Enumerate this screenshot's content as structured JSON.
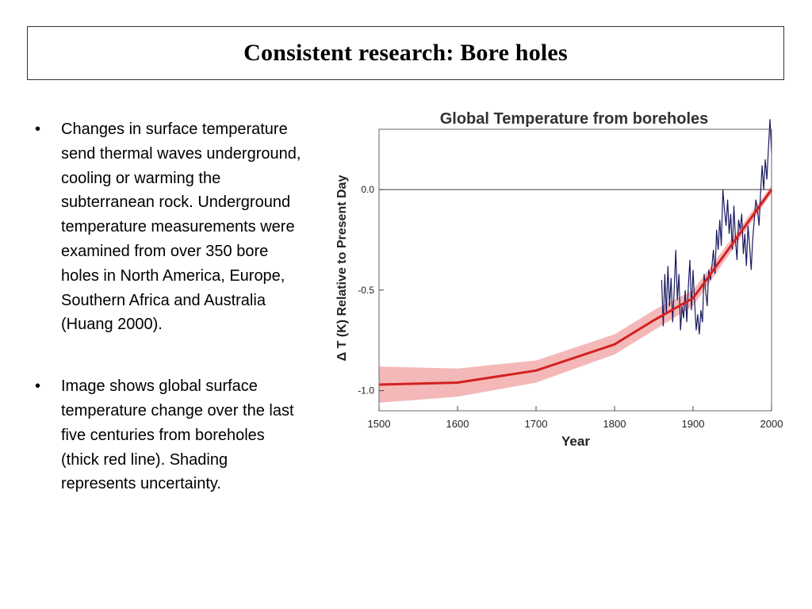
{
  "slide": {
    "title": "Consistent research: Bore holes",
    "bullets": [
      "Changes in surface temperature send thermal waves underground, cooling or warming the subterranean rock. Underground temperature measurements were examined from over 350 bore holes in North America, Europe, Southern Africa and Australia (Huang 2000).",
      "Image shows global surface temperature change over the last five centuries from boreholes (thick red line). Shading represents uncertainty."
    ]
  },
  "chart_data": {
    "type": "line",
    "title": "Global Temperature from boreholes",
    "xlabel": "Year",
    "ylabel": "Δ T (K) Relative to Present Day",
    "xlim": [
      1500,
      2000
    ],
    "ylim": [
      -1.1,
      0.3
    ],
    "x_ticks": [
      1500,
      1600,
      1700,
      1800,
      1900,
      2000
    ],
    "x_tick_labels": [
      "1500",
      "1600",
      "1700",
      "1800",
      "1900",
      "2000"
    ],
    "y_ticks": [
      0.0,
      -0.5,
      -1.0
    ],
    "y_tick_labels": [
      "0.0",
      "-0.5",
      "-1.0"
    ],
    "reference_line": 0.0,
    "grid": false,
    "legend": "none",
    "series": [
      {
        "kind": "borehole_reconstruction",
        "color": "#d42020",
        "x": [
          1500,
          1600,
          1700,
          1800,
          1850,
          1900,
          2000
        ],
        "y": [
          -0.97,
          -0.96,
          -0.9,
          -0.77,
          -0.65,
          -0.54,
          0.0
        ]
      },
      {
        "kind": "uncertainty_band",
        "color": "#f4b8b8",
        "x": [
          1500,
          1600,
          1700,
          1800,
          1850,
          1900,
          2000
        ],
        "upper": [
          -0.88,
          -0.89,
          -0.85,
          -0.72,
          -0.6,
          -0.5,
          0.02
        ],
        "lower": [
          -1.06,
          -1.03,
          -0.96,
          -0.82,
          -0.7,
          -0.58,
          -0.02
        ]
      },
      {
        "kind": "instrumental_record",
        "color": "#1a1a60",
        "x": [
          1860,
          1862,
          1864,
          1866,
          1868,
          1870,
          1872,
          1874,
          1876,
          1878,
          1880,
          1882,
          1884,
          1886,
          1888,
          1890,
          1892,
          1894,
          1896,
          1898,
          1900,
          1902,
          1904,
          1906,
          1908,
          1910,
          1912,
          1914,
          1916,
          1918,
          1920,
          1922,
          1924,
          1926,
          1928,
          1930,
          1932,
          1934,
          1936,
          1938,
          1940,
          1942,
          1944,
          1946,
          1948,
          1950,
          1952,
          1954,
          1956,
          1958,
          1960,
          1962,
          1964,
          1966,
          1968,
          1970,
          1972,
          1974,
          1976,
          1978,
          1980,
          1982,
          1984,
          1986,
          1988,
          1990,
          1992,
          1994,
          1996,
          1998,
          2000
        ],
        "y": [
          -0.45,
          -0.68,
          -0.42,
          -0.62,
          -0.38,
          -0.58,
          -0.44,
          -0.66,
          -0.5,
          -0.3,
          -0.55,
          -0.42,
          -0.7,
          -0.58,
          -0.64,
          -0.5,
          -0.66,
          -0.48,
          -0.35,
          -0.6,
          -0.4,
          -0.56,
          -0.7,
          -0.62,
          -0.72,
          -0.6,
          -0.66,
          -0.42,
          -0.5,
          -0.58,
          -0.4,
          -0.45,
          -0.38,
          -0.3,
          -0.42,
          -0.2,
          -0.3,
          -0.15,
          -0.28,
          0.0,
          -0.1,
          -0.18,
          -0.05,
          -0.22,
          -0.12,
          -0.3,
          -0.08,
          -0.25,
          -0.35,
          -0.15,
          -0.2,
          -0.12,
          -0.32,
          -0.22,
          -0.38,
          -0.18,
          -0.28,
          -0.4,
          -0.25,
          -0.15,
          -0.05,
          -0.1,
          -0.18,
          -0.02,
          0.12,
          0.0,
          0.15,
          0.05,
          0.2,
          0.35,
          0.18
        ]
      }
    ]
  }
}
